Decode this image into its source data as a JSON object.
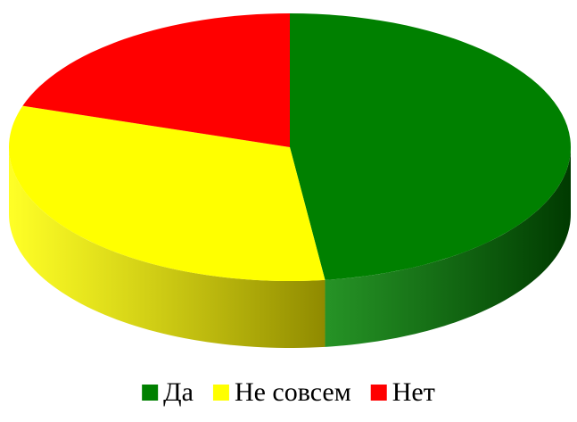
{
  "chart_data": {
    "type": "pie3d",
    "categories": [
      "Да",
      "Не совсем",
      "Нет"
    ],
    "values": [
      48,
      32,
      20
    ],
    "colors": [
      "#008000",
      "#ffff00",
      "#ff0000"
    ],
    "side_colors": [
      "#003a00",
      "#8f8a00",
      "#b00000"
    ],
    "legend": "bottom"
  }
}
